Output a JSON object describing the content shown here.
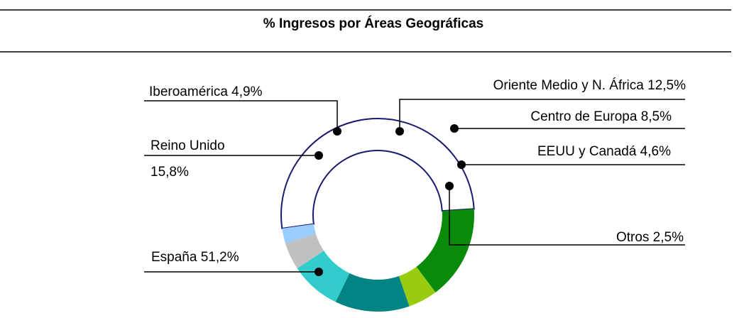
{
  "chart_data": {
    "type": "donut",
    "title": "% Ingresos por Áreas Geográficas",
    "slices": [
      {
        "label": "España 51,2%",
        "value": 51.2,
        "color": "#ffffff",
        "stroke": "#1a1a6e"
      },
      {
        "label": "Reino Unido 15,8%",
        "label_lines": [
          "Reino Unido",
          "15,8%"
        ],
        "value": 15.8,
        "color": "#0a8a0a"
      },
      {
        "label": "Iberoamérica 4,9%",
        "value": 4.9,
        "color": "#99cc11"
      },
      {
        "label": "Oriente Medio y N. África 12,5%",
        "value": 12.5,
        "color": "#028484"
      },
      {
        "label": "Centro de Europa 8,5%",
        "value": 8.5,
        "color": "#33cccc"
      },
      {
        "label": "EEUU y Canadá 4,6%",
        "value": 4.6,
        "color": "#c0c0c0"
      },
      {
        "label": "Otros 2,5%",
        "value": 2.5,
        "color": "#99ccff"
      }
    ]
  }
}
